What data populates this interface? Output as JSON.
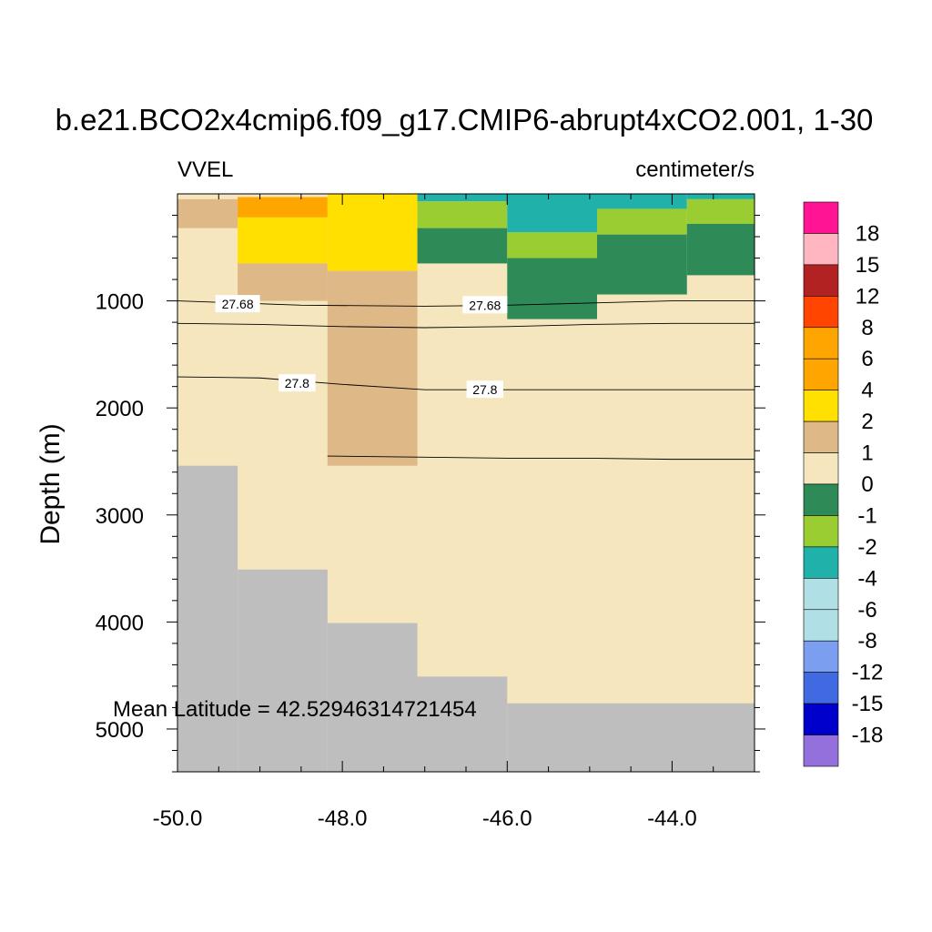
{
  "chart_data": {
    "type": "heatmap",
    "title": "b.e21.BCO2x4cmip6.f09_g17.CMIP6-abrupt4xCO2.001, 1-30",
    "left_label": "VVEL",
    "right_label": "centimeter/s",
    "ylabel": "Depth (m)",
    "xlabel": "",
    "xlim": [
      -50.0,
      -43.0
    ],
    "ylim": [
      5400,
      0
    ],
    "xticks": [
      -50.0,
      -48.0,
      -46.0,
      -44.0
    ],
    "xtick_labels": [
      "-50.0",
      "-48.0",
      "-46.0",
      "-44.0"
    ],
    "yticks": [
      1000,
      2000,
      3000,
      4000,
      5000
    ],
    "ytick_labels": [
      "1000",
      "2000",
      "3000",
      "4000",
      "5000"
    ],
    "annotation": "Mean Latitude = 42.52946314721454",
    "column_edges": [
      -50.0,
      -49.27,
      -48.18,
      -47.09,
      -46.0,
      -44.91,
      -43.82,
      -43.0
    ],
    "colorbar": {
      "labels": [
        "18",
        "15",
        "12",
        "8",
        "6",
        "4",
        "2",
        "1",
        "0",
        "-1",
        "-2",
        "-4",
        "-6",
        "-8",
        "-12",
        "-15",
        "-18"
      ],
      "colors": [
        "#ff1493",
        "#ffb6c1",
        "#b22222",
        "#ff4500",
        "#ffa500",
        "#ffa500",
        "#ffe000",
        "#deb887",
        "#f5e6be",
        "#2e8b57",
        "#9acd32",
        "#20b2aa",
        "#b0e0e6",
        "#b0e0e6",
        "#7b9ef0",
        "#4169e1",
        "#0000cd",
        "#9370db"
      ]
    },
    "cells": [
      {
        "x0": -50.0,
        "x1": -43.0,
        "d0": 0,
        "d1": 5400,
        "value": 0.5
      },
      {
        "x0": -50.0,
        "x1": -49.27,
        "d0": 50,
        "d1": 320,
        "value": 1.5
      },
      {
        "x0": -49.27,
        "x1": -48.18,
        "d0": 30,
        "d1": 220,
        "value": 5
      },
      {
        "x0": -49.27,
        "x1": -48.18,
        "d0": 220,
        "d1": 650,
        "value": 3
      },
      {
        "x0": -49.27,
        "x1": -48.18,
        "d0": 650,
        "d1": 1000,
        "value": 1.5
      },
      {
        "x0": -48.18,
        "x1": -47.09,
        "d0": 0,
        "d1": 720,
        "value": 3
      },
      {
        "x0": -48.18,
        "x1": -47.09,
        "d0": 720,
        "d1": 2540,
        "value": 1.5
      },
      {
        "x0": -47.09,
        "x1": -46.0,
        "d0": 0,
        "d1": 70,
        "value": -3
      },
      {
        "x0": -47.09,
        "x1": -46.0,
        "d0": 70,
        "d1": 320,
        "value": -1.5
      },
      {
        "x0": -47.09,
        "x1": -46.0,
        "d0": 320,
        "d1": 650,
        "value": -0.5
      },
      {
        "x0": -46.0,
        "x1": -44.91,
        "d0": 0,
        "d1": 360,
        "value": -3
      },
      {
        "x0": -46.0,
        "x1": -44.91,
        "d0": 360,
        "d1": 600,
        "value": -1.5
      },
      {
        "x0": -46.0,
        "x1": -44.91,
        "d0": 600,
        "d1": 1170,
        "value": -0.5
      },
      {
        "x0": -44.91,
        "x1": -43.82,
        "d0": 0,
        "d1": 140,
        "value": -3
      },
      {
        "x0": -44.91,
        "x1": -43.82,
        "d0": 140,
        "d1": 380,
        "value": -1.5
      },
      {
        "x0": -44.91,
        "x1": -43.82,
        "d0": 380,
        "d1": 940,
        "value": -0.5
      },
      {
        "x0": -43.82,
        "x1": -43.0,
        "d0": 0,
        "d1": 50,
        "value": -3
      },
      {
        "x0": -43.82,
        "x1": -43.0,
        "d0": 50,
        "d1": 280,
        "value": -1.5
      },
      {
        "x0": -43.82,
        "x1": -43.0,
        "d0": 280,
        "d1": 760,
        "value": -0.5
      }
    ],
    "bathymetry": [
      {
        "x0": -50.0,
        "x1": -49.27,
        "depth": 2540
      },
      {
        "x0": -49.27,
        "x1": -48.18,
        "depth": 3510
      },
      {
        "x0": -48.18,
        "x1": -47.09,
        "depth": 4010
      },
      {
        "x0": -47.09,
        "x1": -46.0,
        "depth": 4510
      },
      {
        "x0": -46.0,
        "x1": -43.0,
        "depth": 4760
      }
    ],
    "contours": [
      {
        "label": "27.68",
        "x": [
          -50.0,
          -48.5,
          -47.0,
          -46.0,
          -45.0,
          -44.0,
          -43.0
        ],
        "depth": [
          1000,
          1040,
          1050,
          1040,
          1020,
          1000,
          1000
        ],
        "label_positions": [
          {
            "x": -49.27,
            "depth": 1030
          },
          {
            "x": -46.27,
            "depth": 1040
          }
        ]
      },
      {
        "label": "",
        "x": [
          -50.0,
          -49.0,
          -48.0,
          -47.0,
          -46.0,
          -45.0,
          -44.0,
          -43.0
        ],
        "depth": [
          1210,
          1220,
          1240,
          1250,
          1240,
          1220,
          1210,
          1210
        ],
        "label_positions": []
      },
      {
        "label": "27.8",
        "x": [
          -50.0,
          -49.0,
          -48.0,
          -47.0,
          -46.0,
          -45.0,
          -44.0,
          -43.0
        ],
        "depth": [
          1710,
          1720,
          1780,
          1830,
          1830,
          1830,
          1830,
          1830
        ],
        "label_positions": [
          {
            "x": -48.55,
            "depth": 1770
          },
          {
            "x": -46.27,
            "depth": 1830
          }
        ]
      },
      {
        "label": "",
        "x": [
          -48.18,
          -47.0,
          -46.0,
          -45.0,
          -44.0,
          -43.0
        ],
        "depth": [
          2450,
          2460,
          2470,
          2470,
          2480,
          2480
        ],
        "label_positions": []
      }
    ]
  },
  "colors": {
    "land": "#bebebe",
    "contour": "#000000"
  }
}
